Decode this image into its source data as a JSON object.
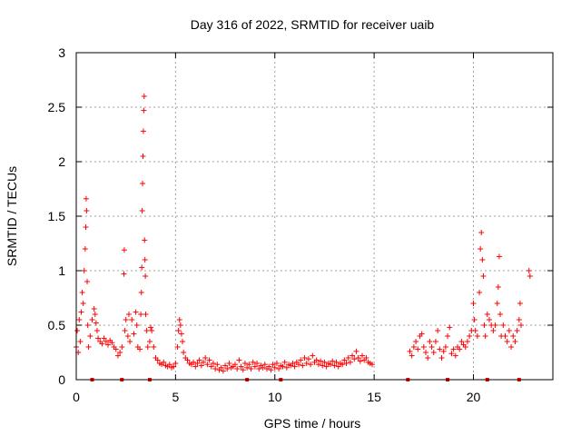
{
  "chart_data": {
    "type": "scatter",
    "title": "Day 316 of 2022, SRMTID for receiver uaib",
    "xlabel": "GPS time / hours",
    "ylabel": "SRMTID / TECUs",
    "xlim": [
      0,
      24
    ],
    "ylim": [
      0,
      3
    ],
    "x_ticks": [
      0,
      5,
      10,
      15,
      20
    ],
    "x_tick_labels": [
      "0",
      "5",
      "10",
      "15",
      "20"
    ],
    "y_ticks": [
      0,
      0.5,
      1,
      1.5,
      2,
      2.5,
      3
    ],
    "y_tick_labels": [
      "0",
      "0.5",
      "1",
      "1.5",
      "2",
      "2.5",
      "3"
    ],
    "grid": true,
    "marker": "plus",
    "series": [
      {
        "name": "SRMTID",
        "color": "#ff0000",
        "points": [
          [
            0.0,
            0.3
          ],
          [
            0.05,
            0.45
          ],
          [
            0.1,
            0.25
          ],
          [
            0.15,
            0.55
          ],
          [
            0.2,
            0.35
          ],
          [
            0.25,
            0.62
          ],
          [
            0.3,
            0.8
          ],
          [
            0.35,
            0.7
          ],
          [
            0.4,
            1.0
          ],
          [
            0.45,
            1.2
          ],
          [
            0.48,
            1.4
          ],
          [
            0.5,
            1.66
          ],
          [
            0.52,
            1.55
          ],
          [
            0.55,
            0.9
          ],
          [
            0.58,
            0.5
          ],
          [
            0.62,
            0.3
          ],
          [
            0.7,
            0.4
          ],
          [
            0.8,
            0.55
          ],
          [
            0.9,
            0.65
          ],
          [
            0.95,
            0.6
          ],
          [
            1.0,
            0.52
          ],
          [
            1.05,
            0.45
          ],
          [
            1.1,
            0.38
          ],
          [
            1.2,
            0.35
          ],
          [
            1.3,
            0.33
          ],
          [
            1.4,
            0.38
          ],
          [
            1.5,
            0.35
          ],
          [
            1.6,
            0.32
          ],
          [
            1.7,
            0.36
          ],
          [
            1.8,
            0.34
          ],
          [
            1.9,
            0.3
          ],
          [
            2.0,
            0.28
          ],
          [
            2.1,
            0.22
          ],
          [
            2.2,
            0.25
          ],
          [
            2.3,
            0.3
          ],
          [
            2.4,
            0.97
          ],
          [
            2.42,
            1.19
          ],
          [
            2.45,
            0.45
          ],
          [
            2.5,
            0.55
          ],
          [
            2.6,
            0.4
          ],
          [
            2.65,
            0.6
          ],
          [
            2.7,
            0.35
          ],
          [
            2.8,
            0.55
          ],
          [
            2.9,
            0.42
          ],
          [
            3.0,
            0.62
          ],
          [
            3.05,
            0.5
          ],
          [
            3.1,
            0.3
          ],
          [
            3.2,
            0.28
          ],
          [
            3.25,
            0.6
          ],
          [
            3.28,
            0.8
          ],
          [
            3.3,
            1.03
          ],
          [
            3.32,
            1.55
          ],
          [
            3.34,
            1.8
          ],
          [
            3.36,
            2.05
          ],
          [
            3.38,
            2.28
          ],
          [
            3.4,
            2.47
          ],
          [
            3.42,
            2.6
          ],
          [
            3.44,
            1.28
          ],
          [
            3.46,
            1.1
          ],
          [
            3.48,
            0.95
          ],
          [
            3.5,
            0.6
          ],
          [
            3.55,
            0.45
          ],
          [
            3.6,
            0.3
          ],
          [
            3.7,
            0.35
          ],
          [
            3.75,
            0.48
          ],
          [
            3.8,
            0.45
          ],
          [
            3.9,
            0.3
          ],
          [
            4.0,
            0.2
          ],
          [
            4.1,
            0.18
          ],
          [
            4.2,
            0.15
          ],
          [
            4.3,
            0.14
          ],
          [
            4.4,
            0.16
          ],
          [
            4.5,
            0.13
          ],
          [
            4.6,
            0.12
          ],
          [
            4.7,
            0.14
          ],
          [
            4.8,
            0.11
          ],
          [
            4.9,
            0.12
          ],
          [
            5.0,
            0.15
          ],
          [
            5.1,
            0.3
          ],
          [
            5.15,
            0.45
          ],
          [
            5.2,
            0.55
          ],
          [
            5.25,
            0.5
          ],
          [
            5.3,
            0.42
          ],
          [
            5.35,
            0.35
          ],
          [
            5.4,
            0.25
          ],
          [
            5.5,
            0.2
          ],
          [
            5.6,
            0.18
          ],
          [
            5.7,
            0.15
          ],
          [
            5.8,
            0.14
          ],
          [
            5.9,
            0.16
          ],
          [
            6.0,
            0.12
          ],
          [
            6.1,
            0.15
          ],
          [
            6.2,
            0.18
          ],
          [
            6.3,
            0.13
          ],
          [
            6.4,
            0.16
          ],
          [
            6.5,
            0.2
          ],
          [
            6.6,
            0.14
          ],
          [
            6.7,
            0.18
          ],
          [
            6.8,
            0.12
          ],
          [
            6.9,
            0.15
          ],
          [
            7.0,
            0.1
          ],
          [
            7.1,
            0.14
          ],
          [
            7.2,
            0.09
          ],
          [
            7.3,
            0.11
          ],
          [
            7.4,
            0.08
          ],
          [
            7.5,
            0.13
          ],
          [
            7.6,
            0.1
          ],
          [
            7.7,
            0.15
          ],
          [
            7.8,
            0.11
          ],
          [
            7.9,
            0.12
          ],
          [
            8.0,
            0.14
          ],
          [
            8.1,
            0.1
          ],
          [
            8.2,
            0.18
          ],
          [
            8.3,
            0.12
          ],
          [
            8.4,
            0.09
          ],
          [
            8.5,
            0.15
          ],
          [
            8.6,
            0.11
          ],
          [
            8.7,
            0.14
          ],
          [
            8.8,
            0.1
          ],
          [
            8.9,
            0.16
          ],
          [
            9.0,
            0.12
          ],
          [
            9.1,
            0.15
          ],
          [
            9.2,
            0.1
          ],
          [
            9.3,
            0.13
          ],
          [
            9.4,
            0.11
          ],
          [
            9.5,
            0.14
          ],
          [
            9.6,
            0.1
          ],
          [
            9.7,
            0.12
          ],
          [
            9.8,
            0.09
          ],
          [
            9.9,
            0.14
          ],
          [
            10.0,
            0.11
          ],
          [
            10.1,
            0.15
          ],
          [
            10.2,
            0.1
          ],
          [
            10.3,
            0.13
          ],
          [
            10.4,
            0.12
          ],
          [
            10.5,
            0.16
          ],
          [
            10.6,
            0.11
          ],
          [
            10.7,
            0.14
          ],
          [
            10.8,
            0.13
          ],
          [
            10.9,
            0.15
          ],
          [
            11.0,
            0.12
          ],
          [
            11.1,
            0.16
          ],
          [
            11.2,
            0.14
          ],
          [
            11.3,
            0.18
          ],
          [
            11.4,
            0.13
          ],
          [
            11.5,
            0.2
          ],
          [
            11.6,
            0.15
          ],
          [
            11.7,
            0.19
          ],
          [
            11.8,
            0.14
          ],
          [
            11.9,
            0.22
          ],
          [
            12.0,
            0.16
          ],
          [
            12.1,
            0.18
          ],
          [
            12.2,
            0.14
          ],
          [
            12.3,
            0.17
          ],
          [
            12.4,
            0.13
          ],
          [
            12.5,
            0.16
          ],
          [
            12.6,
            0.12
          ],
          [
            12.7,
            0.15
          ],
          [
            12.8,
            0.14
          ],
          [
            12.9,
            0.17
          ],
          [
            13.0,
            0.13
          ],
          [
            13.1,
            0.16
          ],
          [
            13.2,
            0.12
          ],
          [
            13.3,
            0.15
          ],
          [
            13.4,
            0.14
          ],
          [
            13.5,
            0.18
          ],
          [
            13.6,
            0.15
          ],
          [
            13.7,
            0.2
          ],
          [
            13.8,
            0.16
          ],
          [
            13.9,
            0.22
          ],
          [
            14.0,
            0.19
          ],
          [
            14.1,
            0.26
          ],
          [
            14.2,
            0.2
          ],
          [
            14.3,
            0.17
          ],
          [
            14.4,
            0.22
          ],
          [
            14.5,
            0.18
          ],
          [
            14.6,
            0.2
          ],
          [
            14.7,
            0.16
          ],
          [
            14.8,
            0.15
          ],
          [
            14.9,
            0.14
          ],
          [
            16.8,
            0.26
          ],
          [
            16.9,
            0.22
          ],
          [
            17.0,
            0.3
          ],
          [
            17.1,
            0.35
          ],
          [
            17.2,
            0.28
          ],
          [
            17.3,
            0.4
          ],
          [
            17.4,
            0.42
          ],
          [
            17.5,
            0.3
          ],
          [
            17.6,
            0.25
          ],
          [
            17.7,
            0.2
          ],
          [
            17.8,
            0.35
          ],
          [
            17.9,
            0.3
          ],
          [
            18.0,
            0.25
          ],
          [
            18.1,
            0.35
          ],
          [
            18.2,
            0.45
          ],
          [
            18.3,
            0.28
          ],
          [
            18.4,
            0.2
          ],
          [
            18.5,
            0.26
          ],
          [
            18.6,
            0.3
          ],
          [
            18.7,
            0.4
          ],
          [
            18.8,
            0.48
          ],
          [
            18.9,
            0.24
          ],
          [
            19.0,
            0.28
          ],
          [
            19.1,
            0.22
          ],
          [
            19.2,
            0.3
          ],
          [
            19.3,
            0.28
          ],
          [
            19.4,
            0.35
          ],
          [
            19.5,
            0.32
          ],
          [
            19.6,
            0.3
          ],
          [
            19.7,
            0.35
          ],
          [
            19.8,
            0.4
          ],
          [
            19.9,
            0.45
          ],
          [
            20.0,
            0.7
          ],
          [
            20.05,
            0.55
          ],
          [
            20.1,
            0.45
          ],
          [
            20.2,
            0.4
          ],
          [
            20.3,
            0.8
          ],
          [
            20.35,
            1.2
          ],
          [
            20.4,
            1.35
          ],
          [
            20.45,
            1.1
          ],
          [
            20.5,
            0.95
          ],
          [
            20.55,
            0.5
          ],
          [
            20.6,
            0.4
          ],
          [
            20.7,
            0.6
          ],
          [
            20.8,
            0.55
          ],
          [
            20.9,
            0.5
          ],
          [
            21.0,
            0.45
          ],
          [
            21.1,
            0.5
          ],
          [
            21.2,
            0.7
          ],
          [
            21.25,
            0.85
          ],
          [
            21.3,
            1.13
          ],
          [
            21.35,
            0.6
          ],
          [
            21.4,
            0.4
          ],
          [
            21.5,
            0.5
          ],
          [
            21.6,
            0.4
          ],
          [
            21.7,
            0.35
          ],
          [
            21.8,
            0.45
          ],
          [
            21.9,
            0.3
          ],
          [
            22.0,
            0.4
          ],
          [
            22.1,
            0.35
          ],
          [
            22.2,
            0.45
          ],
          [
            22.3,
            0.55
          ],
          [
            22.35,
            0.7
          ],
          [
            22.4,
            0.5
          ],
          [
            22.8,
            1.0
          ],
          [
            22.85,
            0.95
          ]
        ]
      },
      {
        "name": "data gaps",
        "color": "#ff0000",
        "x": [
          0.8,
          2.3,
          3.7,
          8.6,
          10.3,
          16.7,
          18.7,
          20.7,
          22.3
        ]
      }
    ]
  }
}
